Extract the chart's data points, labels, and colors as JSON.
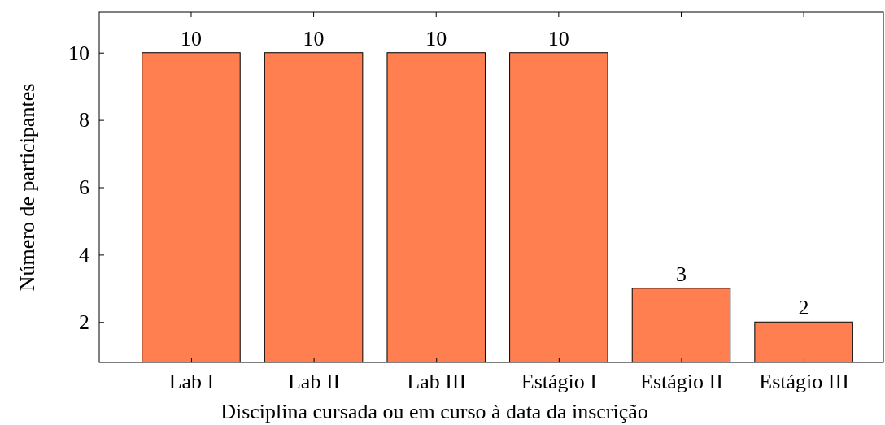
{
  "chart_data": {
    "type": "bar",
    "xlabel": "Disciplina cursada ou em curso à data da inscrição",
    "ylabel": "Número de participantes",
    "categories": [
      "Lab I",
      "Lab II",
      "Lab III",
      "Estágio I",
      "Estágio II",
      "Estágio III"
    ],
    "values": [
      10,
      10,
      10,
      10,
      3,
      2
    ],
    "color": "#ff7f50",
    "data_labels": true,
    "ylim": [
      0.8,
      11.2
    ],
    "yticks": [
      2,
      4,
      6,
      8,
      10
    ],
    "grid": false
  }
}
